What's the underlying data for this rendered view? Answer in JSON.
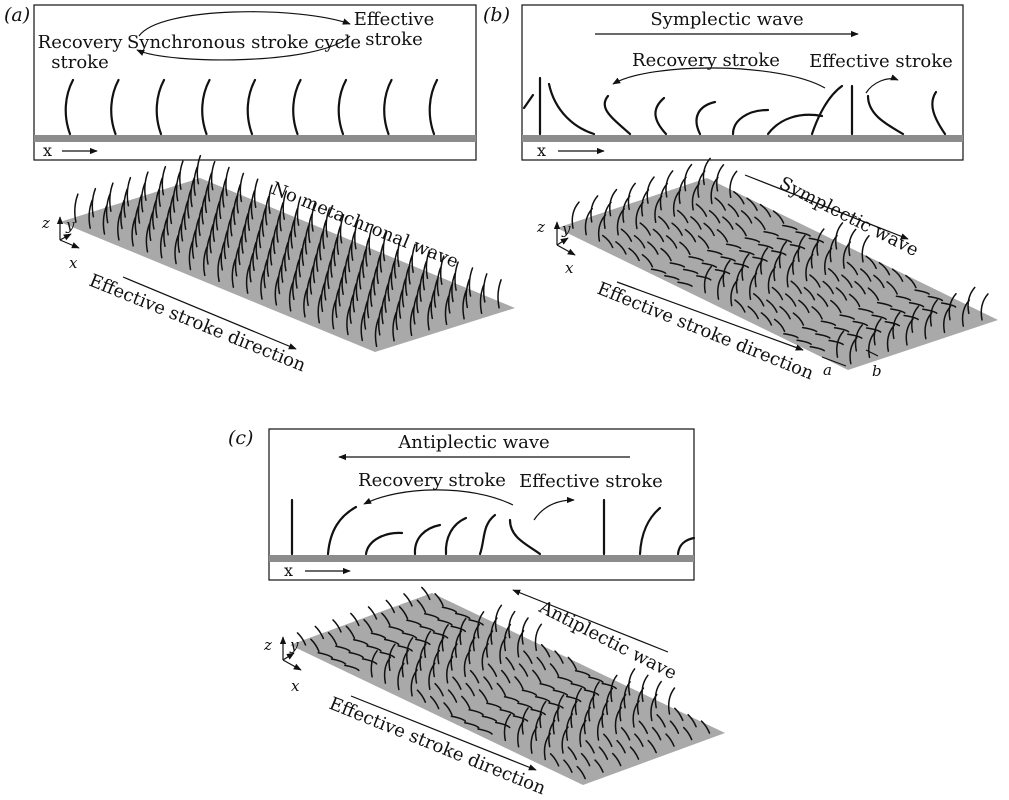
{
  "panels": {
    "a": {
      "label": "(a)",
      "top_labels": {
        "recovery_line1": "Recovery",
        "recovery_line2": "stroke",
        "cycle": "Synchronous stroke cycle",
        "effective_line1": "Effective",
        "effective_line2": "stroke",
        "x_axis": "x"
      },
      "carpet_labels": {
        "wave": "No metachronal wave",
        "direction": "Effective stroke direction"
      }
    },
    "b": {
      "label": "(b)",
      "top_labels": {
        "wave": "Symplectic wave",
        "recovery": "Recovery stroke",
        "effective": "Effective stroke",
        "x_axis": "x"
      },
      "carpet_labels": {
        "wave": "Symplectic wave",
        "direction": "Effective stroke direction",
        "a": "a",
        "b": "b"
      }
    },
    "c": {
      "label": "(c)",
      "top_labels": {
        "wave": "Antiplectic wave",
        "recovery": "Recovery stroke",
        "effective": "Effective stroke",
        "x_axis": "x"
      },
      "carpet_labels": {
        "wave": "Antiplectic wave",
        "direction": "Effective stroke direction"
      }
    }
  },
  "axes": {
    "x": "x",
    "y": "y",
    "z": "z"
  },
  "colors": {
    "ink": "#111111",
    "carpet": "#a9a9a9",
    "wall": "#8c8c8c"
  }
}
